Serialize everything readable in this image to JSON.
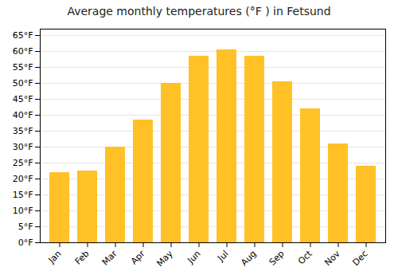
{
  "chart_data": {
    "type": "bar",
    "title": "Average monthly temperatures (°F ) in Fetsund",
    "categories": [
      "Jan",
      "Feb",
      "Mar",
      "Apr",
      "May",
      "Jun",
      "Jul",
      "Aug",
      "Sep",
      "Oct",
      "Nov",
      "Dec"
    ],
    "values": [
      22,
      22.5,
      30,
      38.5,
      50,
      58.5,
      60.5,
      58.5,
      50.5,
      42,
      31,
      24
    ],
    "color": "#FFC125",
    "ylim": [
      0,
      67
    ],
    "yticks": [
      {
        "value": 0,
        "label": "0°F"
      },
      {
        "value": 5,
        "label": "5°F"
      },
      {
        "value": 10,
        "label": "10°F"
      },
      {
        "value": 15,
        "label": "15°F"
      },
      {
        "value": 20,
        "label": "20°F"
      },
      {
        "value": 25,
        "label": "25°F"
      },
      {
        "value": 30,
        "label": "30°F"
      },
      {
        "value": 35,
        "label": "35°F"
      },
      {
        "value": 40,
        "label": "40°F"
      },
      {
        "value": 45,
        "label": "45°F"
      },
      {
        "value": 50,
        "label": "50°F"
      },
      {
        "value": 55,
        "label": "55°F"
      },
      {
        "value": 60,
        "label": "60°F"
      },
      {
        "value": 65,
        "label": "65°F"
      }
    ],
    "grid": true
  }
}
